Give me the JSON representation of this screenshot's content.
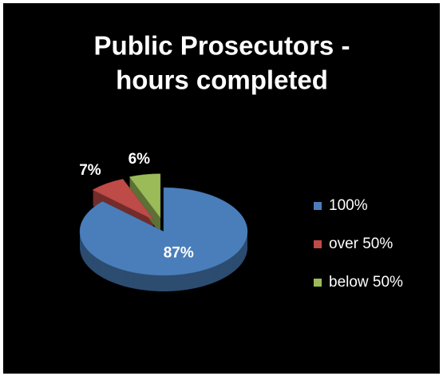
{
  "chart_data": {
    "type": "pie",
    "title": [
      "Public Prosecutors -",
      "hours completed"
    ],
    "categories": [
      "100%",
      "over 50%",
      "below 50%"
    ],
    "values": [
      87,
      7,
      6
    ],
    "value_labels": [
      "87%",
      "7%",
      "6%"
    ],
    "colors": [
      "#4a7ebb",
      "#be4b48",
      "#9bbb59"
    ],
    "legend": "right"
  }
}
